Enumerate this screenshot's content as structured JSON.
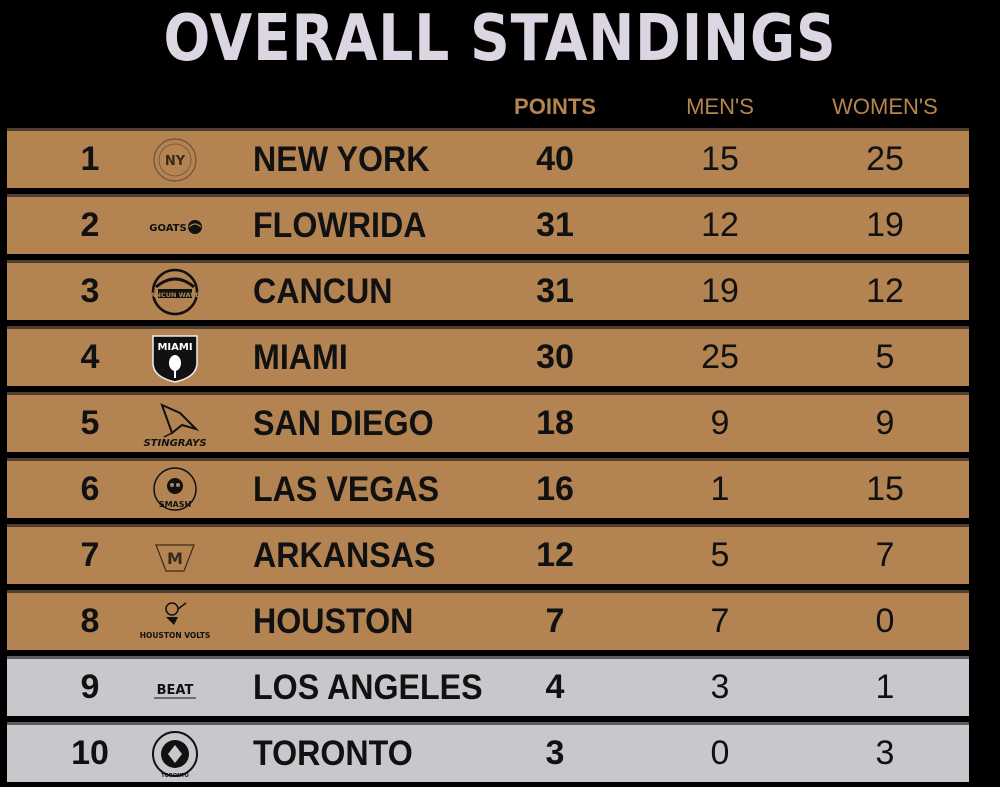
{
  "title": "OVERALL STANDINGS",
  "columns": {
    "points": "POINTS",
    "mens": "MEN'S",
    "womens": "WOMEN'S"
  },
  "colors": {
    "background": "#000000",
    "row_gold": "#b38452",
    "row_gray": "#c9c7cb",
    "title": "#dcd6e2",
    "header": "#b5854f"
  },
  "standings": [
    {
      "rank": "1",
      "team": "NEW YORK",
      "points": "40",
      "mens": "15",
      "womens": "25",
      "logo": "new-york-atlantics-logo",
      "logo_text": "NY"
    },
    {
      "rank": "2",
      "team": "FLOWRIDA",
      "points": "31",
      "mens": "12",
      "womens": "19",
      "logo": "flowrida-goats-logo",
      "logo_text": "GOATS"
    },
    {
      "rank": "3",
      "team": "CANCUN",
      "points": "31",
      "mens": "19",
      "womens": "12",
      "logo": "cancun-waves-logo",
      "logo_text": "CANCUN WAVES"
    },
    {
      "rank": "4",
      "team": "MIAMI",
      "points": "30",
      "mens": "25",
      "womens": "5",
      "logo": "miami-padel-club-logo",
      "logo_text": "MIAMI"
    },
    {
      "rank": "5",
      "team": "SAN DIEGO",
      "points": "18",
      "mens": "9",
      "womens": "9",
      "logo": "san-diego-stingrays-logo",
      "logo_text": "STINGRAYS"
    },
    {
      "rank": "6",
      "team": "LAS VEGAS",
      "points": "16",
      "mens": "1",
      "womens": "15",
      "logo": "las-vegas-smash-logo",
      "logo_text": "SMASH"
    },
    {
      "rank": "7",
      "team": "ARKANSAS",
      "points": "12",
      "mens": "5",
      "womens": "7",
      "logo": "arkansas-logo",
      "logo_text": "M"
    },
    {
      "rank": "8",
      "team": "HOUSTON",
      "points": "7",
      "mens": "7",
      "womens": "0",
      "logo": "houston-volts-logo",
      "logo_text": "HOUSTON VOLTS"
    },
    {
      "rank": "9",
      "team": "LOS ANGELES",
      "points": "4",
      "mens": "3",
      "womens": "1",
      "logo": "los-angeles-beat-logo",
      "logo_text": "BEAT"
    },
    {
      "rank": "10",
      "team": "TORONTO",
      "points": "3",
      "mens": "0",
      "womens": "3",
      "logo": "toronto-logo",
      "logo_text": "TORONTO"
    }
  ]
}
